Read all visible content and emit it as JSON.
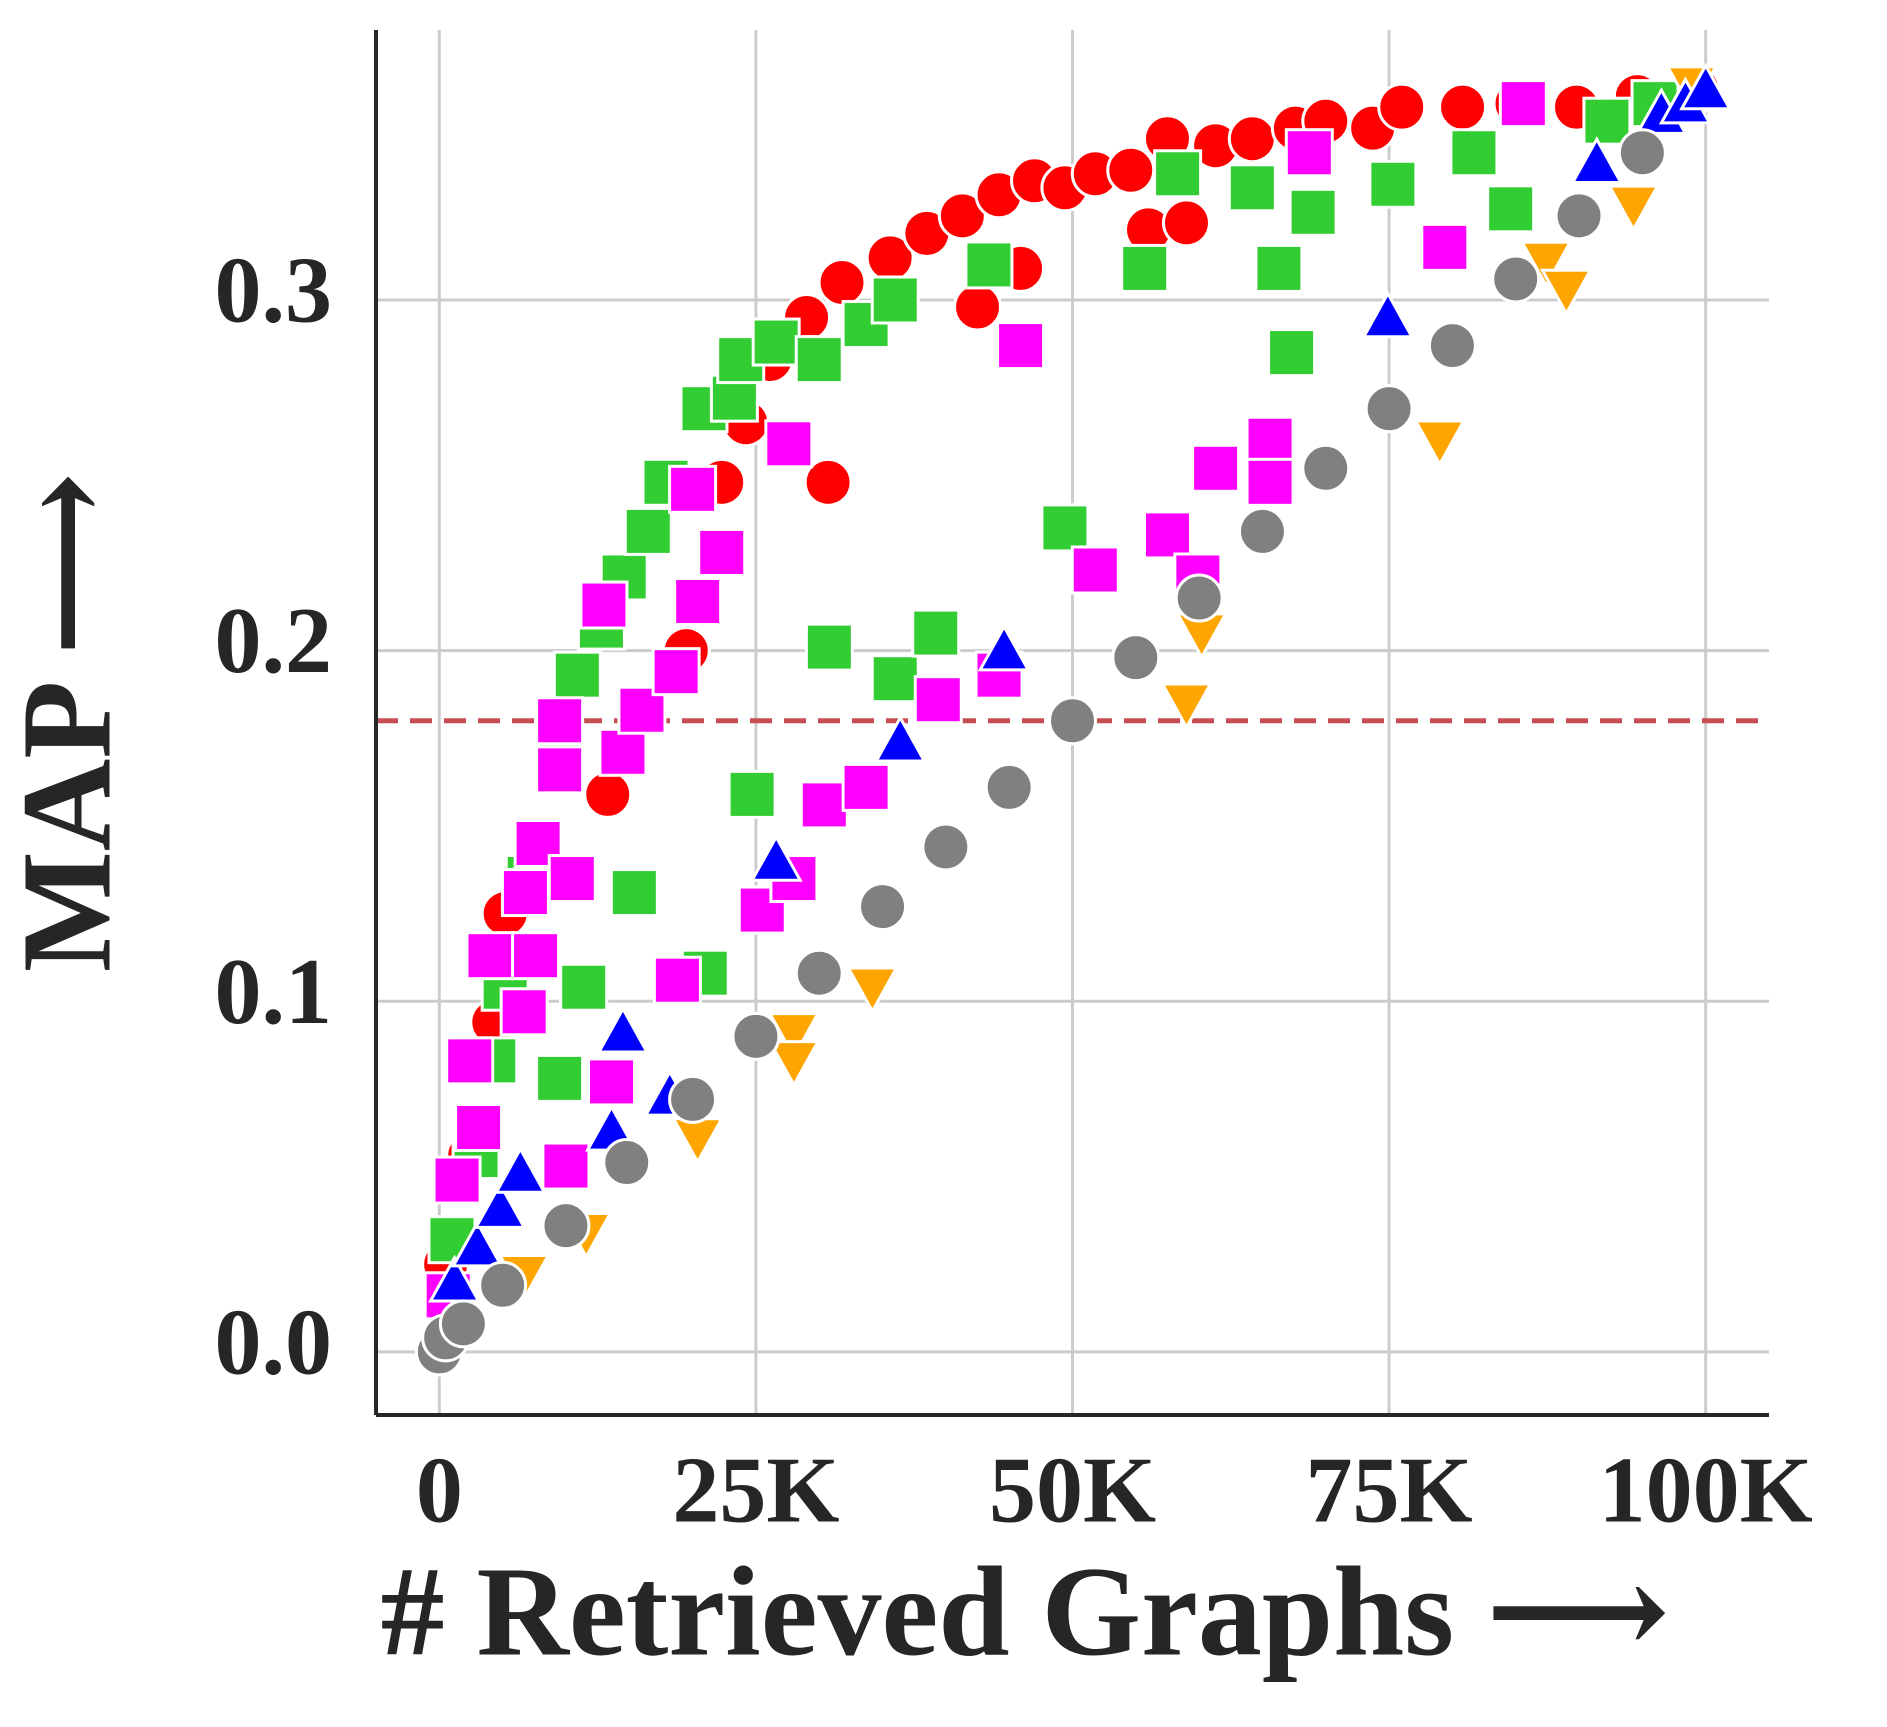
{
  "chart_data": {
    "type": "scatter",
    "xlabel": "# Retrieved Graphs ⟶",
    "ylabel": "MAP ⟶",
    "xlim": [
      -5000,
      105000
    ],
    "ylim": [
      -0.018,
      0.377
    ],
    "xticks": [
      0,
      {
        "value": 25000,
        "label": "25K"
      },
      {
        "value": 50000,
        "label": "50K"
      },
      {
        "value": 75000,
        "label": "75K"
      },
      {
        "value": 100000,
        "label": "100K"
      }
    ],
    "yticks": [
      {
        "value": 0,
        "label": "0.0"
      },
      0.1,
      0.2,
      0.3
    ],
    "grid": true,
    "reference_line": 0.18,
    "reference_line_color": "#c44e52",
    "series": [
      {
        "color": "#ff0000",
        "marker": "circle",
        "x": [
          500,
          2400,
          4300,
          5200,
          8000,
          13300,
          19500,
          22300,
          24200,
          26100,
          29000,
          31800,
          35600,
          38500,
          41300,
          44200,
          47000,
          49400,
          51800,
          54600,
          57500,
          61300,
          64200,
          67600,
          70000,
          73700,
          76000,
          80800,
          85100,
          89800,
          94600,
          99300,
          30700,
          42500,
          45900,
          56000,
          59000
        ],
        "values": [
          0.025,
          0.056,
          0.094,
          0.125,
          0.145,
          0.159,
          0.2,
          0.248,
          0.265,
          0.283,
          0.295,
          0.305,
          0.312,
          0.319,
          0.324,
          0.33,
          0.334,
          0.332,
          0.336,
          0.337,
          0.346,
          0.344,
          0.346,
          0.349,
          0.351,
          0.349,
          0.355,
          0.355,
          0.356,
          0.355,
          0.358,
          0.36,
          0.248,
          0.298,
          0.309,
          0.32,
          0.322
        ]
      },
      {
        "color": "#32cd32",
        "marker": "square",
        "x": [
          1000,
          2900,
          4300,
          5200,
          9500,
          11400,
          7100,
          9500,
          10900,
          12800,
          14600,
          16500,
          17900,
          20900,
          23300,
          23800,
          26600,
          30000,
          33700,
          36000,
          43400,
          15400,
          21000,
          24700,
          30800,
          36000,
          39200,
          49400,
          55700,
          58300,
          64200,
          66300,
          69000,
          67300,
          75300,
          81700,
          84600,
          92200,
          96000
        ],
        "values": [
          0.032,
          0.056,
          0.083,
          0.104,
          0.078,
          0.104,
          0.135,
          0.173,
          0.193,
          0.207,
          0.221,
          0.234,
          0.248,
          0.269,
          0.272,
          0.283,
          0.288,
          0.283,
          0.293,
          0.3,
          0.31,
          0.131,
          0.108,
          0.159,
          0.201,
          0.192,
          0.205,
          0.235,
          0.309,
          0.336,
          0.332,
          0.309,
          0.325,
          0.285,
          0.333,
          0.342,
          0.326,
          0.351,
          0.356
        ]
      },
      {
        "color": "#ff00ff",
        "marker": "square",
        "x": [
          700,
          1400,
          3100,
          2400,
          4000,
          6700,
          7600,
          6800,
          7800,
          10500,
          9500,
          9500,
          13000,
          14500,
          16000,
          18700,
          20400,
          22300,
          20000,
          27600,
          45900,
          10000,
          13600,
          18800,
          25500,
          28000,
          30400,
          33700,
          39400,
          44200,
          51800,
          57500,
          59900,
          61300,
          65600,
          65600,
          68700,
          79400,
          85600
        ],
        "values": [
          0.016,
          0.049,
          0.064,
          0.083,
          0.113,
          0.097,
          0.113,
          0.131,
          0.145,
          0.135,
          0.166,
          0.18,
          0.213,
          0.171,
          0.183,
          0.194,
          0.214,
          0.228,
          0.246,
          0.259,
          0.287,
          0.053,
          0.077,
          0.106,
          0.126,
          0.135,
          0.156,
          0.161,
          0.186,
          0.193,
          0.223,
          0.233,
          0.221,
          0.252,
          0.26,
          0.248,
          0.342,
          0.315,
          0.356
        ]
      },
      {
        "color": "#ffa500",
        "marker": "triangle-down",
        "x": [
          6700,
          11600,
          20400,
          28000,
          28000,
          34200,
          59000,
          60200,
          79000,
          87400,
          89000,
          94300,
          98900
        ],
        "values": [
          0.022,
          0.034,
          0.061,
          0.091,
          0.083,
          0.104,
          0.185,
          0.205,
          0.26,
          0.311,
          0.303,
          0.327,
          0.361
        ]
      },
      {
        "color": "#0000ff",
        "marker": "triangle-up",
        "x": [
          1200,
          3000,
          4800,
          6400,
          13600,
          14500,
          18200,
          26600,
          36400,
          44600,
          74900,
          91400,
          96500,
          98400,
          100000
        ],
        "values": [
          0.02,
          0.03,
          0.041,
          0.051,
          0.063,
          0.091,
          0.073,
          0.14,
          0.174,
          0.2,
          0.295,
          0.339,
          0.353,
          0.356,
          0.36
        ]
      },
      {
        "color": "#808080",
        "marker": "circle",
        "x": [
          0,
          500,
          1900,
          5000,
          10000,
          14800,
          20000,
          25000,
          30000,
          35000,
          40000,
          45000,
          50000,
          55000,
          60000,
          65000,
          70000,
          75000,
          80000,
          85000,
          90000,
          95000
        ],
        "values": [
          0,
          0.004,
          0.008,
          0.019,
          0.036,
          0.054,
          0.072,
          0.09,
          0.108,
          0.127,
          0.144,
          0.161,
          0.18,
          0.198,
          0.215,
          0.234,
          0.252,
          0.269,
          0.287,
          0.306,
          0.324,
          0.342
        ]
      }
    ]
  }
}
